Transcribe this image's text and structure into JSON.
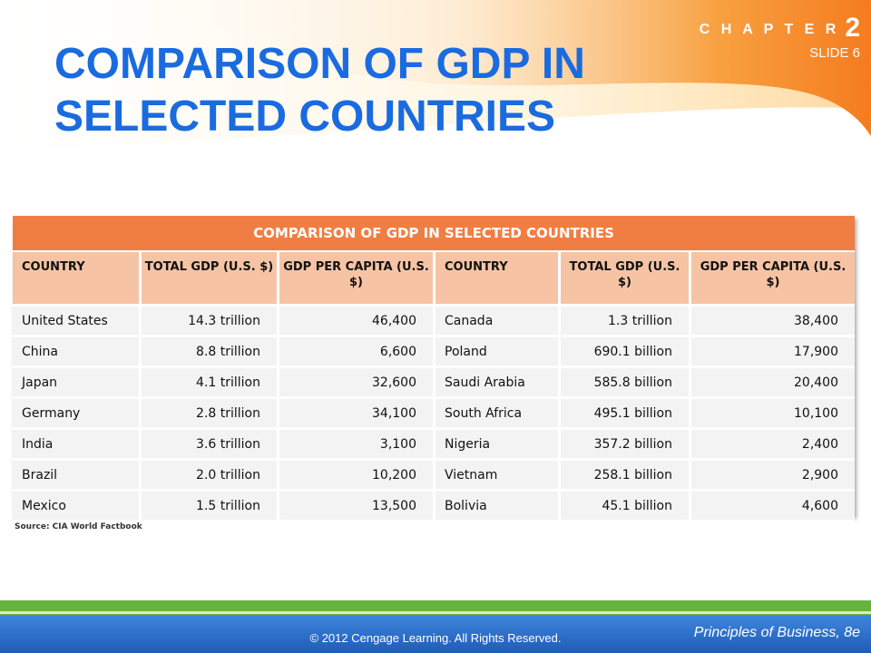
{
  "header": {
    "chapter_label": "C H A P T E R",
    "chapter_number": "2",
    "slide_label": "SLIDE 6"
  },
  "title": "COMPARISON OF GDP IN SELECTED COUNTRIES",
  "table": {
    "caption": "COMPARISON OF GDP IN SELECTED COUNTRIES",
    "columns": [
      "COUNTRY",
      "TOTAL GDP (U.S. $)",
      "GDP PER CAPITA (U.S. $)",
      "COUNTRY",
      "TOTAL GDP (U.S. $)",
      "GDP PER CAPITA (U.S. $)"
    ],
    "rows": [
      [
        "United States",
        "14.3 trillion",
        "46,400",
        "Canada",
        "1.3 trillion",
        "38,400"
      ],
      [
        "China",
        "8.8 trillion",
        "6,600",
        "Poland",
        "690.1 billion",
        "17,900"
      ],
      [
        "Japan",
        "4.1 trillion",
        "32,600",
        "Saudi Arabia",
        "585.8 billion",
        "20,400"
      ],
      [
        "Germany",
        "2.8 trillion",
        "34,100",
        "South Africa",
        "495.1 billion",
        "10,100"
      ],
      [
        "India",
        "3.6 trillion",
        "3,100",
        "Nigeria",
        "357.2 billion",
        "2,400"
      ],
      [
        "Brazil",
        "2.0 trillion",
        "10,200",
        "Vietnam",
        "258.1 billion",
        "2,900"
      ],
      [
        "Mexico",
        "1.5 trillion",
        "13,500",
        "Bolivia",
        "45.1 billion",
        "4,600"
      ]
    ],
    "source": "Source: CIA World Factbook"
  },
  "footer": {
    "copyright": "© 2012 Cengage Learning. All Rights Reserved.",
    "book_title": "Principles of Business, 8e"
  },
  "colors": {
    "title_blue": "#1a6be0",
    "header_orange": "#f07e43",
    "footer_blue": "#2a6ec8",
    "footer_green": "#66b43c"
  }
}
